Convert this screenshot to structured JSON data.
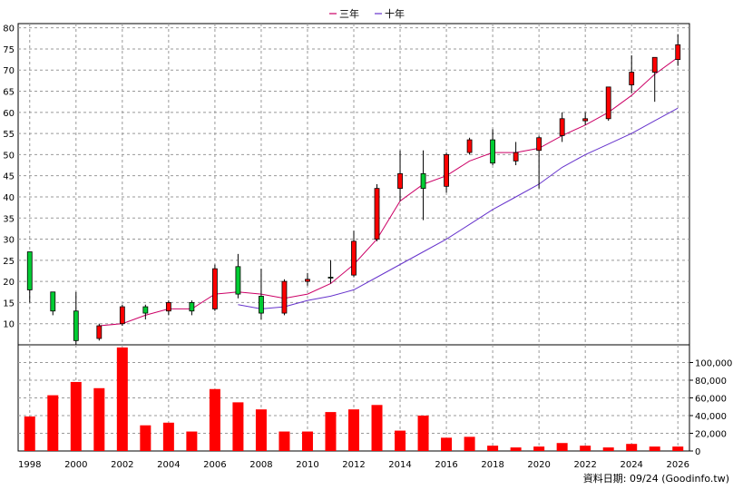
{
  "chart_data": {
    "type": "candlestick",
    "legend": [
      {
        "name": "三年",
        "color": "#cc0066"
      },
      {
        "name": "十年",
        "color": "#6633cc"
      }
    ],
    "source_note": "資料日期: 09/24 (Goodinfo.tw)",
    "x_ticks": [
      "1998",
      "2000",
      "2002",
      "2004",
      "2006",
      "2008",
      "2010",
      "2012",
      "2014",
      "2016",
      "2018",
      "2020",
      "2022",
      "2024",
      "2026"
    ],
    "price_axis": {
      "ylim": [
        5,
        81
      ],
      "ticks": [
        10,
        15,
        20,
        25,
        30,
        35,
        40,
        45,
        50,
        55,
        60,
        65,
        70,
        75,
        80
      ],
      "position": "left"
    },
    "volume_axis": {
      "ylim": [
        0,
        120000
      ],
      "ticks": [
        "0",
        "20,000",
        "40,000",
        "60,000",
        "80,000",
        "100,000"
      ],
      "tick_values": [
        0,
        20000,
        40000,
        60000,
        80000,
        100000
      ],
      "position": "right"
    },
    "up_color": "#00cc33",
    "down_color": "#ff0000",
    "volume_color": "#ff0000",
    "candles": [
      {
        "year": 1998,
        "open": 18,
        "high": 27,
        "low": 15,
        "close": 27
      },
      {
        "year": 1999,
        "open": 13,
        "high": 17.5,
        "low": 12,
        "close": 17.5
      },
      {
        "year": 2000,
        "open": 6,
        "high": 17.5,
        "low": 5,
        "close": 13
      },
      {
        "year": 2001,
        "open": 9.5,
        "high": 10,
        "low": 6,
        "close": 6.5
      },
      {
        "year": 2002,
        "open": 14,
        "high": 14.5,
        "low": 9.5,
        "close": 10
      },
      {
        "year": 2003,
        "open": 12.5,
        "high": 14.5,
        "low": 11,
        "close": 14
      },
      {
        "year": 2004,
        "open": 15,
        "high": 15.5,
        "low": 12,
        "close": 13
      },
      {
        "year": 2005,
        "open": 13,
        "high": 15.5,
        "low": 12,
        "close": 15
      },
      {
        "year": 2006,
        "open": 23,
        "high": 24,
        "low": 13,
        "close": 13.5
      },
      {
        "year": 2007,
        "open": 17,
        "high": 26.5,
        "low": 16,
        "close": 23.5
      },
      {
        "year": 2008,
        "open": 12.5,
        "high": 23,
        "low": 11,
        "close": 16.5
      },
      {
        "year": 2009,
        "open": 20,
        "high": 20.5,
        "low": 12,
        "close": 12.5
      },
      {
        "year": 2010,
        "open": 20.5,
        "high": 22,
        "low": 19,
        "close": 20
      },
      {
        "year": 2011,
        "open": 21,
        "high": 25,
        "low": 19.5,
        "close": 21
      },
      {
        "year": 2012,
        "open": 29.5,
        "high": 32,
        "low": 21,
        "close": 21.5
      },
      {
        "year": 2013,
        "open": 42,
        "high": 43,
        "low": 29.5,
        "close": 30
      },
      {
        "year": 2014,
        "open": 45.5,
        "high": 51,
        "low": 39,
        "close": 42
      },
      {
        "year": 2015,
        "open": 42,
        "high": 51,
        "low": 34.5,
        "close": 45.5
      },
      {
        "year": 2016,
        "open": 50,
        "high": 50.5,
        "low": 41,
        "close": 42.5
      },
      {
        "year": 2017,
        "open": 53.5,
        "high": 54,
        "low": 50,
        "close": 50.5
      },
      {
        "year": 2018,
        "open": 48,
        "high": 56,
        "low": 47.5,
        "close": 53.5
      },
      {
        "year": 2019,
        "open": 50.5,
        "high": 53,
        "low": 47.5,
        "close": 48.5
      },
      {
        "year": 2020,
        "open": 54,
        "high": 54.5,
        "low": 42,
        "close": 51
      },
      {
        "year": 2021,
        "open": 58.5,
        "high": 60,
        "low": 53,
        "close": 54.5
      },
      {
        "year": 2022,
        "open": 58.5,
        "high": 60,
        "low": 57,
        "close": 58
      },
      {
        "year": 2023,
        "open": 66,
        "high": 66,
        "low": 58,
        "close": 58.5
      },
      {
        "year": 2024,
        "open": 69.5,
        "high": 73.5,
        "low": 64.5,
        "close": 66.5
      },
      {
        "year": 2025,
        "open": 73,
        "high": 73,
        "low": 62.5,
        "close": 69.5
      },
      {
        "year": 2026,
        "open": 76,
        "high": 78.5,
        "low": 71,
        "close": 72.5
      }
    ],
    "ma_3y": {
      "name": "三年",
      "points": [
        [
          2001,
          9.5
        ],
        [
          2002,
          10
        ],
        [
          2003,
          12
        ],
        [
          2004,
          13.5
        ],
        [
          2005,
          13.5
        ],
        [
          2006,
          17
        ],
        [
          2007,
          17.5
        ],
        [
          2008,
          17
        ],
        [
          2009,
          16
        ],
        [
          2010,
          17
        ],
        [
          2011,
          19.5
        ],
        [
          2012,
          24
        ],
        [
          2013,
          30
        ],
        [
          2014,
          39
        ],
        [
          2015,
          43
        ],
        [
          2016,
          45
        ],
        [
          2017,
          48.5
        ],
        [
          2018,
          50.5
        ],
        [
          2019,
          50.5
        ],
        [
          2020,
          51.5
        ],
        [
          2021,
          54.5
        ],
        [
          2022,
          57
        ],
        [
          2023,
          60
        ],
        [
          2024,
          64
        ],
        [
          2025,
          69
        ],
        [
          2026,
          73
        ]
      ]
    },
    "ma_10y": {
      "name": "十年",
      "points": [
        [
          2007,
          14.5
        ],
        [
          2008,
          13.5
        ],
        [
          2009,
          14
        ],
        [
          2010,
          15.5
        ],
        [
          2011,
          16.5
        ],
        [
          2012,
          18
        ],
        [
          2013,
          21
        ],
        [
          2014,
          24
        ],
        [
          2015,
          27
        ],
        [
          2016,
          30
        ],
        [
          2017,
          33.5
        ],
        [
          2018,
          37
        ],
        [
          2019,
          40
        ],
        [
          2020,
          43
        ],
        [
          2021,
          47
        ],
        [
          2022,
          50
        ],
        [
          2023,
          52.5
        ],
        [
          2024,
          55
        ],
        [
          2025,
          58
        ],
        [
          2026,
          61
        ]
      ]
    },
    "volume": [
      {
        "year": 1998,
        "value": 39000
      },
      {
        "year": 1999,
        "value": 63000
      },
      {
        "year": 2000,
        "value": 78000
      },
      {
        "year": 2001,
        "value": 71000
      },
      {
        "year": 2002,
        "value": 117000
      },
      {
        "year": 2003,
        "value": 29000
      },
      {
        "year": 2004,
        "value": 32000
      },
      {
        "year": 2005,
        "value": 22000
      },
      {
        "year": 2006,
        "value": 70000
      },
      {
        "year": 2007,
        "value": 55000
      },
      {
        "year": 2008,
        "value": 47000
      },
      {
        "year": 2009,
        "value": 22000
      },
      {
        "year": 2010,
        "value": 22000
      },
      {
        "year": 2011,
        "value": 44000
      },
      {
        "year": 2012,
        "value": 47000
      },
      {
        "year": 2013,
        "value": 52000
      },
      {
        "year": 2014,
        "value": 23000
      },
      {
        "year": 2015,
        "value": 40000
      },
      {
        "year": 2016,
        "value": 15000
      },
      {
        "year": 2017,
        "value": 16000
      },
      {
        "year": 2018,
        "value": 6000
      },
      {
        "year": 2019,
        "value": 4000
      },
      {
        "year": 2020,
        "value": 5000
      },
      {
        "year": 2021,
        "value": 9000
      },
      {
        "year": 2022,
        "value": 6000
      },
      {
        "year": 2023,
        "value": 4000
      },
      {
        "year": 2024,
        "value": 8000
      },
      {
        "year": 2025,
        "value": 5000
      },
      {
        "year": 2026,
        "value": 5000
      }
    ],
    "grid": true
  }
}
